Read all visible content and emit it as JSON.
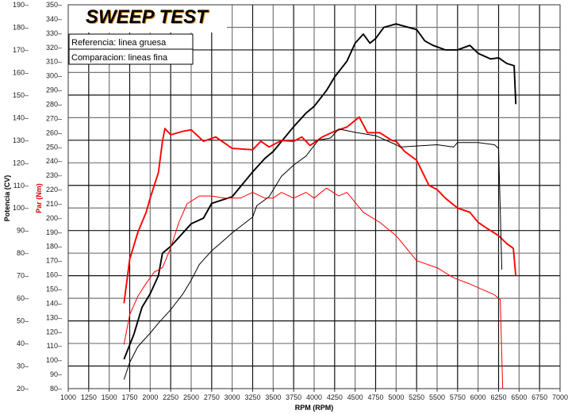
{
  "chart_data": {
    "type": "line",
    "title": "SWEEP TEST",
    "legend": [
      "Referencia: linea gruesa",
      "Comparacion: lineas fina"
    ],
    "legend_placement": "top-left",
    "xlabel": "RPM (RPM)",
    "ylabel_power": "Potencia (CV)",
    "ylabel_torque": "Par (Nm)",
    "xlim": [
      1000,
      7000
    ],
    "ylim_power": [
      20,
      190
    ],
    "ylim_torque": [
      80,
      350
    ],
    "x_ticks": [
      1000,
      1250,
      1500,
      1750,
      2000,
      2250,
      2500,
      2750,
      3000,
      3250,
      3500,
      3750,
      4000,
      4250,
      4500,
      4750,
      5000,
      5250,
      5500,
      5750,
      6000,
      6250,
      6500,
      6750,
      7000
    ],
    "power_ticks": [
      20,
      30,
      40,
      50,
      60,
      70,
      80,
      90,
      100,
      110,
      120,
      130,
      140,
      150,
      160,
      170,
      180,
      190
    ],
    "torque_ticks": [
      80,
      90,
      100,
      110,
      120,
      130,
      140,
      150,
      160,
      170,
      180,
      190,
      200,
      210,
      220,
      230,
      240,
      250,
      260,
      270,
      280,
      290,
      300,
      310,
      320,
      330,
      340,
      350
    ],
    "grid": true,
    "colors": {
      "power": "#000000",
      "torque": "#ff0000"
    },
    "series": [
      {
        "name": "Referencia potencia",
        "axis": "power",
        "weight": "thick",
        "x": [
          1680,
          1800,
          1900,
          2000,
          2100,
          2150,
          2250,
          2500,
          2650,
          2750,
          3000,
          3250,
          3400,
          3500,
          3750,
          3900,
          4000,
          4150,
          4250,
          4400,
          4500,
          4600,
          4680,
          4750,
          4850,
          5000,
          5250,
          5350,
          5450,
          5600,
          5750,
          5900,
          6000,
          6150,
          6250,
          6350,
          6440,
          6460
        ],
        "y": [
          33,
          44,
          56,
          62,
          70,
          80,
          83,
          93,
          95.5,
          102,
          105,
          116,
          122,
          125,
          136,
          142,
          145,
          152,
          158,
          165,
          173,
          177,
          173,
          175,
          180,
          181.5,
          179,
          174,
          172,
          170,
          170,
          172,
          168.5,
          166,
          166.5,
          164,
          163,
          146
        ]
      },
      {
        "name": "Referencia par",
        "axis": "torque",
        "weight": "thick",
        "x": [
          1680,
          1750,
          1850,
          1950,
          2000,
          2050,
          2100,
          2150,
          2180,
          2250,
          2400,
          2500,
          2650,
          2800,
          3000,
          3250,
          3350,
          3450,
          3600,
          3750,
          3850,
          3950,
          4100,
          4250,
          4400,
          4550,
          4650,
          4800,
          4950,
          5000,
          5100,
          5250,
          5400,
          5500,
          5600,
          5750,
          5900,
          6000,
          6100,
          6250,
          6350,
          6430,
          6460
        ],
        "y": [
          140,
          171,
          190,
          204,
          214,
          223,
          232,
          254,
          263,
          258.5,
          261,
          262,
          254,
          257,
          249,
          248,
          254,
          250,
          254.5,
          254,
          257,
          251,
          257,
          261,
          264,
          271,
          260,
          260,
          254.5,
          254,
          247,
          240.6,
          223,
          220,
          214,
          207,
          204,
          197,
          193,
          187.6,
          182,
          178.7,
          159
        ]
      },
      {
        "name": "Comparacion potencia",
        "axis": "power",
        "weight": "thin",
        "x": [
          1680,
          1750,
          1850,
          2000,
          2100,
          2250,
          2400,
          2500,
          2600,
          2750,
          2900,
          3000,
          3250,
          3300,
          3450,
          3600,
          3750,
          3900,
          4050,
          4200,
          4300,
          4500,
          4750,
          5000,
          5050,
          5500,
          5700,
          5750,
          6000,
          6200,
          6250,
          6290
        ],
        "y": [
          24,
          31.6,
          38.6,
          44.6,
          49,
          55,
          62,
          68,
          75,
          81,
          85.7,
          89,
          96,
          101,
          105,
          114,
          119,
          123,
          130,
          131,
          135,
          133.5,
          132,
          128,
          127,
          128,
          127,
          129,
          129,
          128,
          126.4,
          72.7
        ]
      },
      {
        "name": "Comparacion par",
        "axis": "torque",
        "weight": "thin",
        "x": [
          1680,
          1750,
          1850,
          1950,
          2050,
          2150,
          2250,
          2350,
          2450,
          2600,
          2750,
          2900,
          3100,
          3250,
          3400,
          3500,
          3600,
          3750,
          3900,
          4000,
          4150,
          4300,
          4400,
          4600,
          4800,
          5000,
          5250,
          5500,
          5700,
          5900,
          6000,
          6200,
          6270,
          6300
        ],
        "y": [
          111,
          132,
          145,
          154,
          162,
          165,
          179,
          197,
          210,
          215.5,
          215.5,
          214,
          214,
          218,
          214,
          214,
          218,
          214,
          218,
          214,
          221,
          215.5,
          218,
          204,
          197,
          187.6,
          170,
          165,
          158,
          153.6,
          151,
          146,
          142.5,
          80
        ]
      }
    ]
  }
}
